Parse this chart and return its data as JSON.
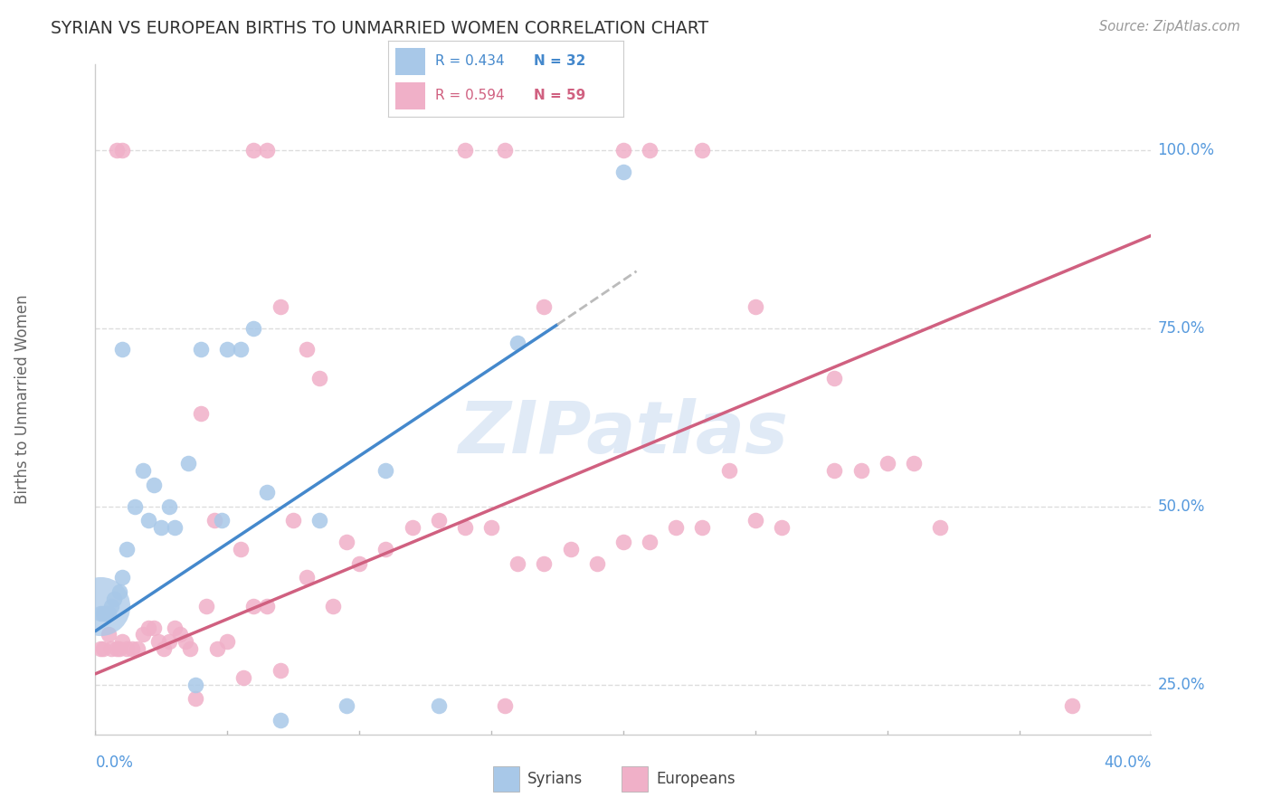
{
  "title": "SYRIAN VS EUROPEAN BIRTHS TO UNMARRIED WOMEN CORRELATION CHART",
  "source": "Source: ZipAtlas.com",
  "ylabel": "Births to Unmarried Women",
  "ytick_vals": [
    0.25,
    0.5,
    0.75,
    1.0
  ],
  "ytick_labels": [
    "25.0%",
    "50.0%",
    "75.0%",
    "100.0%"
  ],
  "xmin": 0.0,
  "xmax": 0.4,
  "ymin": 0.18,
  "ymax": 1.12,
  "syrians_R": "0.434",
  "syrians_N": "32",
  "europeans_R": "0.594",
  "europeans_N": "59",
  "syrian_color": "#a8c8e8",
  "european_color": "#f0b0c8",
  "syrian_line_color": "#4488cc",
  "european_line_color": "#d06080",
  "dashed_line_color": "#bbbbbb",
  "watermark_text": "ZIPatlas",
  "watermark_color": "#c8daf0",
  "background_color": "#ffffff",
  "grid_color": "#dddddd",
  "title_color": "#333333",
  "axis_label_color": "#5599dd",
  "legend_text_color_blue": "#4488cc",
  "legend_text_color_pink": "#d06080",
  "syrian_line_x0": 0.0,
  "syrian_line_y0": 0.325,
  "syrian_line_x1": 0.175,
  "syrian_line_y1": 0.755,
  "syrian_line_dash_x1": 0.205,
  "syrian_line_dash_y1": 0.83,
  "european_line_x0": 0.0,
  "european_line_y0": 0.265,
  "european_line_x1": 0.4,
  "european_line_y1": 0.88,
  "syrians_x": [
    0.002,
    0.003,
    0.004,
    0.005,
    0.006,
    0.007,
    0.009,
    0.01,
    0.015,
    0.022,
    0.028,
    0.03,
    0.038,
    0.048,
    0.055,
    0.065,
    0.07,
    0.085,
    0.095,
    0.11,
    0.13,
    0.16,
    0.2,
    0.01,
    0.012,
    0.018,
    0.02,
    0.025,
    0.035,
    0.04,
    0.05,
    0.06
  ],
  "syrians_y": [
    0.35,
    0.35,
    0.35,
    0.35,
    0.36,
    0.37,
    0.38,
    0.4,
    0.5,
    0.53,
    0.5,
    0.47,
    0.25,
    0.48,
    0.72,
    0.52,
    0.2,
    0.48,
    0.22,
    0.55,
    0.22,
    0.73,
    0.97,
    0.72,
    0.44,
    0.55,
    0.48,
    0.47,
    0.56,
    0.72,
    0.72,
    0.75
  ],
  "syrians_large_x": [
    0.002
  ],
  "syrians_large_y": [
    0.36
  ],
  "europeans_x": [
    0.002,
    0.003,
    0.005,
    0.006,
    0.008,
    0.009,
    0.01,
    0.012,
    0.014,
    0.016,
    0.018,
    0.02,
    0.022,
    0.024,
    0.026,
    0.028,
    0.03,
    0.032,
    0.034,
    0.036,
    0.038,
    0.042,
    0.046,
    0.05,
    0.056,
    0.06,
    0.065,
    0.07,
    0.08,
    0.09,
    0.1,
    0.11,
    0.12,
    0.13,
    0.14,
    0.15,
    0.16,
    0.17,
    0.18,
    0.19,
    0.2,
    0.21,
    0.22,
    0.23,
    0.25,
    0.26,
    0.28,
    0.29,
    0.3,
    0.31,
    0.32,
    0.04,
    0.045,
    0.055,
    0.075,
    0.085,
    0.095,
    0.155,
    0.24,
    0.37
  ],
  "europeans_y": [
    0.3,
    0.3,
    0.32,
    0.3,
    0.3,
    0.3,
    0.31,
    0.3,
    0.3,
    0.3,
    0.32,
    0.33,
    0.33,
    0.31,
    0.3,
    0.31,
    0.33,
    0.32,
    0.31,
    0.3,
    0.23,
    0.36,
    0.3,
    0.31,
    0.26,
    0.36,
    0.36,
    0.27,
    0.4,
    0.36,
    0.42,
    0.44,
    0.47,
    0.48,
    0.47,
    0.47,
    0.42,
    0.42,
    0.44,
    0.42,
    0.45,
    0.45,
    0.47,
    0.47,
    0.48,
    0.47,
    0.55,
    0.55,
    0.56,
    0.56,
    0.47,
    0.63,
    0.48,
    0.44,
    0.48,
    0.68,
    0.45,
    0.22,
    0.55,
    0.22
  ],
  "europeans_top_x": [
    0.008,
    0.01,
    0.06,
    0.065,
    0.14,
    0.155,
    0.2,
    0.21,
    0.23,
    0.17,
    0.25,
    0.28,
    0.07,
    0.08
  ],
  "europeans_top_y": [
    1.0,
    1.0,
    1.0,
    1.0,
    1.0,
    1.0,
    1.0,
    1.0,
    1.0,
    0.78,
    0.78,
    0.68,
    0.78,
    0.72
  ]
}
